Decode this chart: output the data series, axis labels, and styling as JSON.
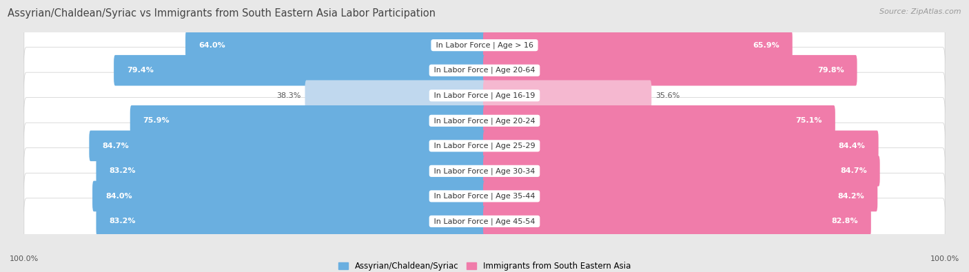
{
  "title": "Assyrian/Chaldean/Syriac vs Immigrants from South Eastern Asia Labor Participation",
  "source": "Source: ZipAtlas.com",
  "categories": [
    "In Labor Force | Age > 16",
    "In Labor Force | Age 20-64",
    "In Labor Force | Age 16-19",
    "In Labor Force | Age 20-24",
    "In Labor Force | Age 25-29",
    "In Labor Force | Age 30-34",
    "In Labor Force | Age 35-44",
    "In Labor Force | Age 45-54"
  ],
  "left_values": [
    64.0,
    79.4,
    38.3,
    75.9,
    84.7,
    83.2,
    84.0,
    83.2
  ],
  "right_values": [
    65.9,
    79.8,
    35.6,
    75.1,
    84.4,
    84.7,
    84.2,
    82.8
  ],
  "left_color": "#6aafe0",
  "right_color": "#f07caa",
  "left_color_light": "#c0d8ee",
  "right_color_light": "#f5b8d0",
  "left_label": "Assyrian/Chaldean/Syriac",
  "right_label": "Immigrants from South Eastern Asia",
  "bg_color": "#e8e8e8",
  "row_bg": "#f2f2f2",
  "text_color_white": "#ffffff",
  "text_color_dark": "#555555",
  "max_val": 100.0,
  "title_fontsize": 10.5,
  "source_fontsize": 8,
  "label_fontsize": 8,
  "value_fontsize": 8,
  "axis_label_fontsize": 8,
  "legend_fontsize": 8.5
}
